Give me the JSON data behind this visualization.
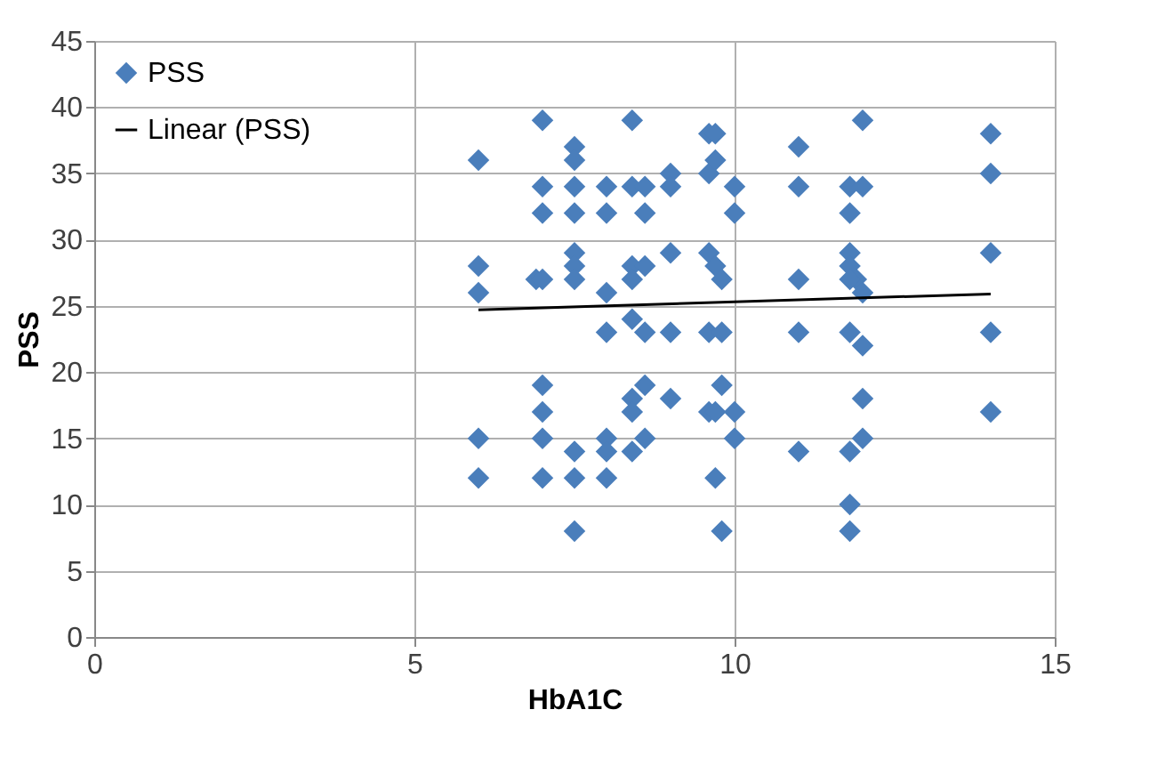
{
  "chart_data": {
    "type": "scatter",
    "xlabel": "HbA1C",
    "ylabel": "PSS",
    "xlim": [
      0,
      15
    ],
    "xticks": [
      0,
      5,
      10,
      15
    ],
    "ylim": [
      0,
      45
    ],
    "yticks": [
      0,
      5,
      10,
      15,
      20,
      25,
      30,
      35,
      40,
      45
    ],
    "grid": true,
    "legend": "top left",
    "marker": "diamond",
    "series": [
      {
        "name": "PSS",
        "color": "#4a7ebb",
        "x": [
          6,
          6,
          6,
          6,
          6,
          6.9,
          7,
          7,
          7,
          7,
          7,
          7,
          7,
          7,
          7.5,
          7.5,
          7.5,
          7.5,
          7.5,
          7.5,
          7.5,
          7.5,
          7.5,
          7.5,
          8,
          8,
          8,
          8,
          8,
          8,
          8,
          8.4,
          8.4,
          8.4,
          8.4,
          8.4,
          8.4,
          8.4,
          8.4,
          8.6,
          8.6,
          8.6,
          8.6,
          8.6,
          8.6,
          9,
          9,
          9,
          9,
          9,
          9.6,
          9.6,
          9.7,
          9.7,
          9.6,
          9.6,
          9.7,
          9.8,
          9.6,
          9.7,
          9.8,
          9.7,
          9.8,
          9.8,
          10,
          10,
          10,
          10,
          11,
          11,
          11,
          11,
          11,
          11.8,
          12,
          11.8,
          11.8,
          11.8,
          11.9,
          11.8,
          12,
          12,
          11.8,
          12,
          12,
          12,
          11.8,
          11.8,
          11.8,
          14,
          14,
          14,
          14,
          14
        ],
        "values": [
          36,
          28,
          26,
          15,
          12,
          27,
          39,
          34,
          32,
          27,
          19,
          17,
          15,
          12,
          37,
          36,
          34,
          32,
          29,
          28,
          27,
          14,
          12,
          8,
          34,
          32,
          26,
          23,
          15,
          14,
          12,
          39,
          34,
          28,
          27,
          24,
          18,
          17,
          14,
          34,
          32,
          28,
          23,
          19,
          15,
          35,
          34,
          29,
          23,
          18,
          38,
          35,
          38,
          36,
          29,
          23,
          28,
          27,
          17,
          17,
          8,
          12,
          19,
          23,
          34,
          32,
          17,
          15,
          37,
          34,
          27,
          23,
          14,
          34,
          39,
          32,
          29,
          28,
          27,
          27,
          26,
          34,
          23,
          22,
          18,
          15,
          14,
          10,
          8,
          38,
          35,
          29,
          23,
          17
        ]
      },
      {
        "name": "Linear (PSS)",
        "color": "#000000",
        "type": "line",
        "marker": "none",
        "line_style": "solid",
        "x": [
          6,
          14
        ],
        "values": [
          24.7,
          25.9
        ]
      }
    ]
  }
}
